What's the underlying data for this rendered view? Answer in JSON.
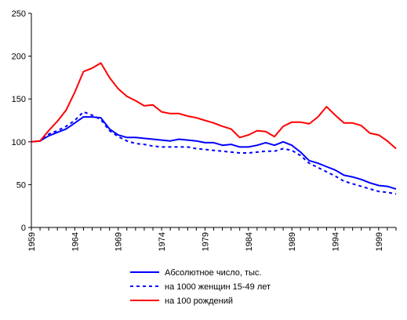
{
  "chart_data": {
    "type": "line",
    "title": "",
    "xlabel": "",
    "ylabel": "",
    "ylim": [
      0,
      250
    ],
    "yticks": [
      0,
      50,
      100,
      150,
      200,
      250
    ],
    "xlim": [
      1959,
      2001
    ],
    "xticks": [
      1959,
      1964,
      1969,
      1974,
      1979,
      1984,
      1989,
      1994,
      1999
    ],
    "grid": false,
    "legend_position": "bottom-center",
    "series": [
      {
        "name": "Абсолютное число, тыс.",
        "color": "#0000ff",
        "style": "solid",
        "x": [
          1959,
          1960,
          1961,
          1962,
          1963,
          1964,
          1965,
          1966,
          1967,
          1968,
          1969,
          1970,
          1971,
          1972,
          1973,
          1974,
          1975,
          1976,
          1977,
          1978,
          1979,
          1980,
          1981,
          1982,
          1983,
          1984,
          1985,
          1986,
          1987,
          1988,
          1989,
          1990,
          1991,
          1992,
          1993,
          1994,
          1995,
          1996,
          1997,
          1998,
          1999,
          2000,
          2001
        ],
        "values": [
          100,
          101,
          107,
          111,
          115,
          122,
          129,
          129,
          128,
          115,
          108,
          105,
          105,
          104,
          103,
          102,
          101,
          103,
          102,
          101,
          99,
          99,
          96,
          97,
          94,
          94,
          96,
          99,
          96,
          100,
          96,
          88,
          78,
          75,
          71,
          67,
          61,
          59,
          56,
          52,
          49,
          48,
          45
        ]
      },
      {
        "name": "на 1000 женщин 15-49 лет",
        "color": "#0000ff",
        "style": "dashed",
        "x": [
          1959,
          1960,
          1961,
          1962,
          1963,
          1964,
          1965,
          1966,
          1967,
          1968,
          1969,
          1970,
          1971,
          1972,
          1973,
          1974,
          1975,
          1976,
          1977,
          1978,
          1979,
          1980,
          1981,
          1982,
          1983,
          1984,
          1985,
          1986,
          1987,
          1988,
          1989,
          1990,
          1991,
          1992,
          1993,
          1994,
          1995,
          1996,
          1997,
          1998,
          1999,
          2000,
          2001
        ],
        "values": [
          100,
          101,
          109,
          113,
          118,
          125,
          135,
          131,
          126,
          113,
          106,
          101,
          98,
          97,
          95,
          94,
          94,
          94,
          94,
          92,
          91,
          90,
          89,
          88,
          87,
          87,
          88,
          89,
          89,
          92,
          90,
          84,
          75,
          70,
          65,
          60,
          54,
          51,
          48,
          45,
          42,
          41,
          39
        ]
      },
      {
        "name": "на 100 рождений",
        "color": "#ff0000",
        "style": "solid",
        "x": [
          1959,
          1960,
          1961,
          1962,
          1963,
          1964,
          1965,
          1966,
          1967,
          1968,
          1969,
          1970,
          1971,
          1972,
          1973,
          1974,
          1975,
          1976,
          1977,
          1978,
          1979,
          1980,
          1981,
          1982,
          1983,
          1984,
          1985,
          1986,
          1987,
          1988,
          1989,
          1990,
          1991,
          1992,
          1993,
          1994,
          1995,
          1996,
          1997,
          1998,
          1999,
          2000,
          2001
        ],
        "values": [
          100,
          101,
          113,
          124,
          137,
          158,
          182,
          186,
          192,
          175,
          162,
          153,
          148,
          142,
          143,
          135,
          133,
          133,
          130,
          128,
          125,
          122,
          118,
          115,
          105,
          108,
          113,
          112,
          106,
          118,
          123,
          123,
          121,
          129,
          141,
          131,
          122,
          122,
          119,
          110,
          108,
          101,
          92
        ]
      }
    ]
  }
}
